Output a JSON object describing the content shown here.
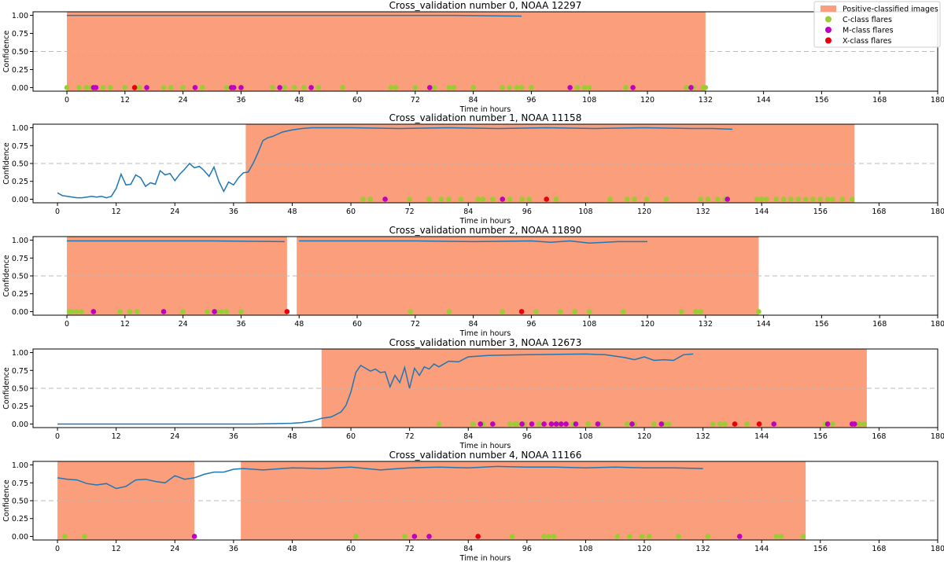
{
  "chart_data": [
    {
      "type": "line",
      "title": "Cross_validation number 0, NOAA 12297",
      "xlabel": "Time in hours",
      "ylabel": "Confidence",
      "xlim": [
        -7,
        180
      ],
      "ylim": [
        -0.05,
        1.05
      ],
      "xticks": [
        "0",
        "12",
        "24",
        "36",
        "48",
        "60",
        "72",
        "84",
        "96",
        "108",
        "120",
        "132",
        "144",
        "156",
        "168",
        "180"
      ],
      "yticks": [
        "0.00",
        "0.25",
        "0.50",
        "0.75",
        "1.00"
      ],
      "threshold": 0.5,
      "positive_regions": [
        [
          0,
          132
        ]
      ],
      "series": [
        {
          "name": "",
          "x": [
            0,
            20,
            40,
            60,
            80,
            94
          ],
          "y": [
            1.0,
            1.0,
            1.0,
            1.0,
            1.0,
            0.99
          ]
        }
      ],
      "c_flares": [
        0,
        2.5,
        4,
        5,
        7.5,
        9,
        12,
        15,
        20,
        21.5,
        24,
        28,
        33,
        42.5,
        45,
        47,
        49,
        52,
        57,
        67,
        68,
        72,
        76,
        79,
        80,
        84,
        90,
        91.5,
        93,
        94,
        96,
        105.5,
        107,
        108,
        115.5,
        128,
        129.5,
        131.5,
        132
      ],
      "m_flares": [
        5.5,
        6,
        16.5,
        26.5,
        34,
        34.5,
        36,
        44,
        50.5,
        75,
        104,
        117,
        129
      ],
      "x_flares": [
        14
      ]
    },
    {
      "type": "line",
      "title": "Cross_validation number 1, NOAA 11158",
      "xlabel": "Time in hours",
      "ylabel": "Confidence",
      "xlim": [
        -5,
        180
      ],
      "ylim": [
        -0.05,
        1.05
      ],
      "xticks": [
        "0",
        "12",
        "24",
        "36",
        "48",
        "60",
        "72",
        "84",
        "96",
        "108",
        "120",
        "132",
        "144",
        "156",
        "168",
        "180"
      ],
      "yticks": [
        "0.00",
        "0.25",
        "0.50",
        "0.75",
        "1.00"
      ],
      "threshold": 0.5,
      "positive_regions": [
        [
          38.5,
          163
        ]
      ],
      "series": [
        {
          "name": "",
          "x": [
            0,
            1,
            2,
            3,
            4,
            5,
            6,
            7,
            8,
            9,
            10,
            11,
            12,
            13,
            14,
            15,
            16,
            17,
            18,
            19,
            20,
            21,
            22,
            23,
            24,
            25,
            26,
            27,
            28,
            29,
            30,
            31,
            32,
            33,
            34,
            35,
            36,
            37,
            38,
            39,
            40,
            41,
            42,
            43,
            44,
            46,
            48,
            50,
            52,
            56,
            60,
            70,
            80,
            90,
            100,
            110,
            120,
            130,
            134,
            138
          ],
          "y": [
            0.09,
            0.05,
            0.04,
            0.03,
            0.02,
            0.02,
            0.03,
            0.04,
            0.03,
            0.04,
            0.02,
            0.04,
            0.15,
            0.35,
            0.2,
            0.21,
            0.34,
            0.3,
            0.18,
            0.23,
            0.21,
            0.4,
            0.34,
            0.36,
            0.26,
            0.35,
            0.42,
            0.5,
            0.44,
            0.46,
            0.4,
            0.32,
            0.45,
            0.25,
            0.11,
            0.24,
            0.2,
            0.3,
            0.37,
            0.38,
            0.5,
            0.65,
            0.82,
            0.86,
            0.88,
            0.94,
            0.97,
            0.99,
            1.0,
            1.0,
            1.0,
            0.99,
            1.0,
            0.99,
            1.0,
            0.99,
            1.0,
            0.99,
            0.99,
            0.98
          ]
        }
      ],
      "c_flares": [
        62.5,
        64,
        72,
        76,
        78.5,
        80,
        82.5,
        86,
        87,
        89,
        92.5,
        95,
        96.5,
        102,
        113,
        116.5,
        118,
        120.5,
        124.5,
        131.5,
        133,
        135,
        136.5,
        143,
        144,
        145,
        147,
        148.5,
        150,
        151.5,
        153,
        154.5,
        156,
        157.5,
        158.5,
        160.5,
        162.5
      ],
      "m_flares": [
        67,
        91,
        137
      ],
      "x_flares": [
        100
      ]
    },
    {
      "type": "line",
      "title": "Cross_validation number 2, NOAA 11890",
      "xlabel": "Time in hours",
      "ylabel": "Confidence",
      "xlim": [
        -7,
        180
      ],
      "ylim": [
        -0.05,
        1.05
      ],
      "xticks": [
        "0",
        "12",
        "24",
        "36",
        "48",
        "60",
        "72",
        "84",
        "96",
        "108",
        "120",
        "132",
        "144",
        "156",
        "168",
        "180"
      ],
      "yticks": [
        "0.00",
        "0.25",
        "0.50",
        "0.75",
        "1.00"
      ],
      "threshold": 0.5,
      "positive_regions": [
        [
          0,
          45.5
        ],
        [
          47.5,
          143
        ]
      ],
      "series": [
        {
          "name": "",
          "x": [
            0,
            10,
            20,
            30,
            45
          ],
          "y": [
            0.99,
            0.99,
            0.99,
            0.99,
            0.98
          ]
        },
        {
          "name": "",
          "x": [
            48,
            60,
            72,
            84,
            96,
            100,
            104,
            108,
            114,
            120
          ],
          "y": [
            0.99,
            0.99,
            0.99,
            0.98,
            0.99,
            0.97,
            0.99,
            0.96,
            0.98,
            0.98
          ]
        }
      ],
      "c_flares": [
        0.5,
        1,
        2,
        3,
        11,
        13,
        14.5,
        24,
        29,
        31,
        32,
        33,
        36,
        71,
        79,
        90,
        97,
        102,
        105,
        108,
        115,
        127,
        130,
        131,
        143
      ],
      "m_flares": [
        5.5,
        20,
        30.5
      ],
      "x_flares": [
        45.5,
        94
      ]
    },
    {
      "type": "line",
      "title": "Cross_validation number 3, NOAA 12673",
      "xlabel": "Time in hours",
      "ylabel": "Confidence",
      "xlim": [
        -5,
        180
      ],
      "ylim": [
        -0.05,
        1.05
      ],
      "xticks": [
        "0",
        "12",
        "24",
        "36",
        "48",
        "60",
        "72",
        "84",
        "96",
        "108",
        "120",
        "132",
        "144",
        "156",
        "168",
        "180"
      ],
      "yticks": [
        "0.00",
        "0.25",
        "0.50",
        "0.75",
        "1.00"
      ],
      "threshold": 0.5,
      "positive_regions": [
        [
          54,
          165.5
        ]
      ],
      "series": [
        {
          "name": "",
          "x": [
            0,
            20,
            40,
            48,
            50,
            52,
            54,
            56,
            58,
            59,
            60,
            61,
            62,
            63,
            64,
            65,
            66,
            67,
            68,
            69,
            70,
            71,
            72,
            73,
            74,
            75,
            76,
            77,
            78,
            80,
            82,
            84,
            88,
            96,
            108,
            112,
            116,
            118,
            120,
            122,
            124,
            126,
            128,
            130
          ],
          "y": [
            0.0,
            0.0,
            0.0,
            0.01,
            0.02,
            0.04,
            0.08,
            0.1,
            0.17,
            0.26,
            0.45,
            0.72,
            0.82,
            0.78,
            0.74,
            0.77,
            0.72,
            0.73,
            0.52,
            0.68,
            0.58,
            0.79,
            0.5,
            0.78,
            0.68,
            0.8,
            0.77,
            0.84,
            0.8,
            0.88,
            0.87,
            0.94,
            0.96,
            0.97,
            0.98,
            0.97,
            0.93,
            0.9,
            0.94,
            0.89,
            0.9,
            0.89,
            0.97,
            0.98
          ]
        }
      ],
      "c_flares": [
        78,
        85,
        87,
        92.5,
        93.5,
        94,
        95.5,
        98.5,
        101,
        102.5,
        105.5,
        108.5,
        111,
        116.5,
        118,
        122,
        124,
        125,
        134,
        135.5,
        136.5,
        141,
        157,
        158.5,
        164,
        165
      ],
      "m_flares": [
        86.5,
        89,
        95,
        97,
        99.5,
        101,
        102,
        103,
        104,
        106,
        110.5,
        117.5,
        123.5,
        146.5,
        157.5,
        162.5,
        163
      ],
      "x_flares": [
        138.5,
        143.5
      ]
    },
    {
      "type": "line",
      "title": "Cross_validation number 4, NOAA 11166",
      "xlabel": "Time in hours",
      "ylabel": "Confidence",
      "xlim": [
        -5,
        180
      ],
      "ylim": [
        -0.05,
        1.05
      ],
      "xticks": [
        "0",
        "12",
        "24",
        "36",
        "48",
        "60",
        "72",
        "84",
        "96",
        "108",
        "120",
        "132",
        "144",
        "156",
        "168",
        "180"
      ],
      "yticks": [
        "0.00",
        "0.25",
        "0.50",
        "0.75",
        "1.00"
      ],
      "threshold": 0.5,
      "positive_regions": [
        [
          0,
          28
        ],
        [
          37.5,
          153
        ]
      ],
      "series": [
        {
          "name": "",
          "x": [
            0,
            2,
            4,
            6,
            8,
            10,
            12,
            14,
            16,
            18,
            20,
            22,
            24,
            26,
            28,
            30,
            32,
            34,
            36,
            38,
            42,
            48,
            54,
            60,
            66,
            72,
            78,
            84,
            90,
            96,
            102,
            108,
            114,
            120,
            126,
            132
          ],
          "y": [
            0.82,
            0.8,
            0.79,
            0.74,
            0.72,
            0.74,
            0.67,
            0.7,
            0.79,
            0.8,
            0.77,
            0.75,
            0.85,
            0.8,
            0.82,
            0.87,
            0.9,
            0.9,
            0.94,
            0.95,
            0.93,
            0.96,
            0.95,
            0.97,
            0.93,
            0.96,
            0.97,
            0.96,
            0.98,
            0.97,
            0.97,
            0.96,
            0.97,
            0.96,
            0.96,
            0.95
          ]
        }
      ],
      "c_flares": [
        1.5,
        5.5,
        61,
        71,
        93,
        99.5,
        100.5,
        101.5,
        114.5,
        117,
        119.5,
        121,
        127,
        133,
        147,
        148,
        152.5
      ],
      "m_flares": [
        28,
        73,
        76,
        139.5
      ],
      "x_flares": [
        86
      ]
    }
  ],
  "legend": {
    "position": "top-right",
    "items": [
      {
        "label": "Positive-classified images",
        "kind": "patch",
        "color": "#fa9e7c"
      },
      {
        "label": "C-class flares",
        "kind": "marker",
        "color": "#9acd32"
      },
      {
        "label": "M-class flares",
        "kind": "marker",
        "color": "#c000c0"
      },
      {
        "label": "X-class flares",
        "kind": "marker",
        "color": "#e8000b"
      }
    ]
  },
  "colors": {
    "positive_region": "#fa9e7c",
    "confidence_line": "#1f77b4",
    "threshold_line": "#bbbbbb",
    "c_flare": "#9acd32",
    "m_flare": "#c000c0",
    "x_flare": "#e8000b"
  }
}
